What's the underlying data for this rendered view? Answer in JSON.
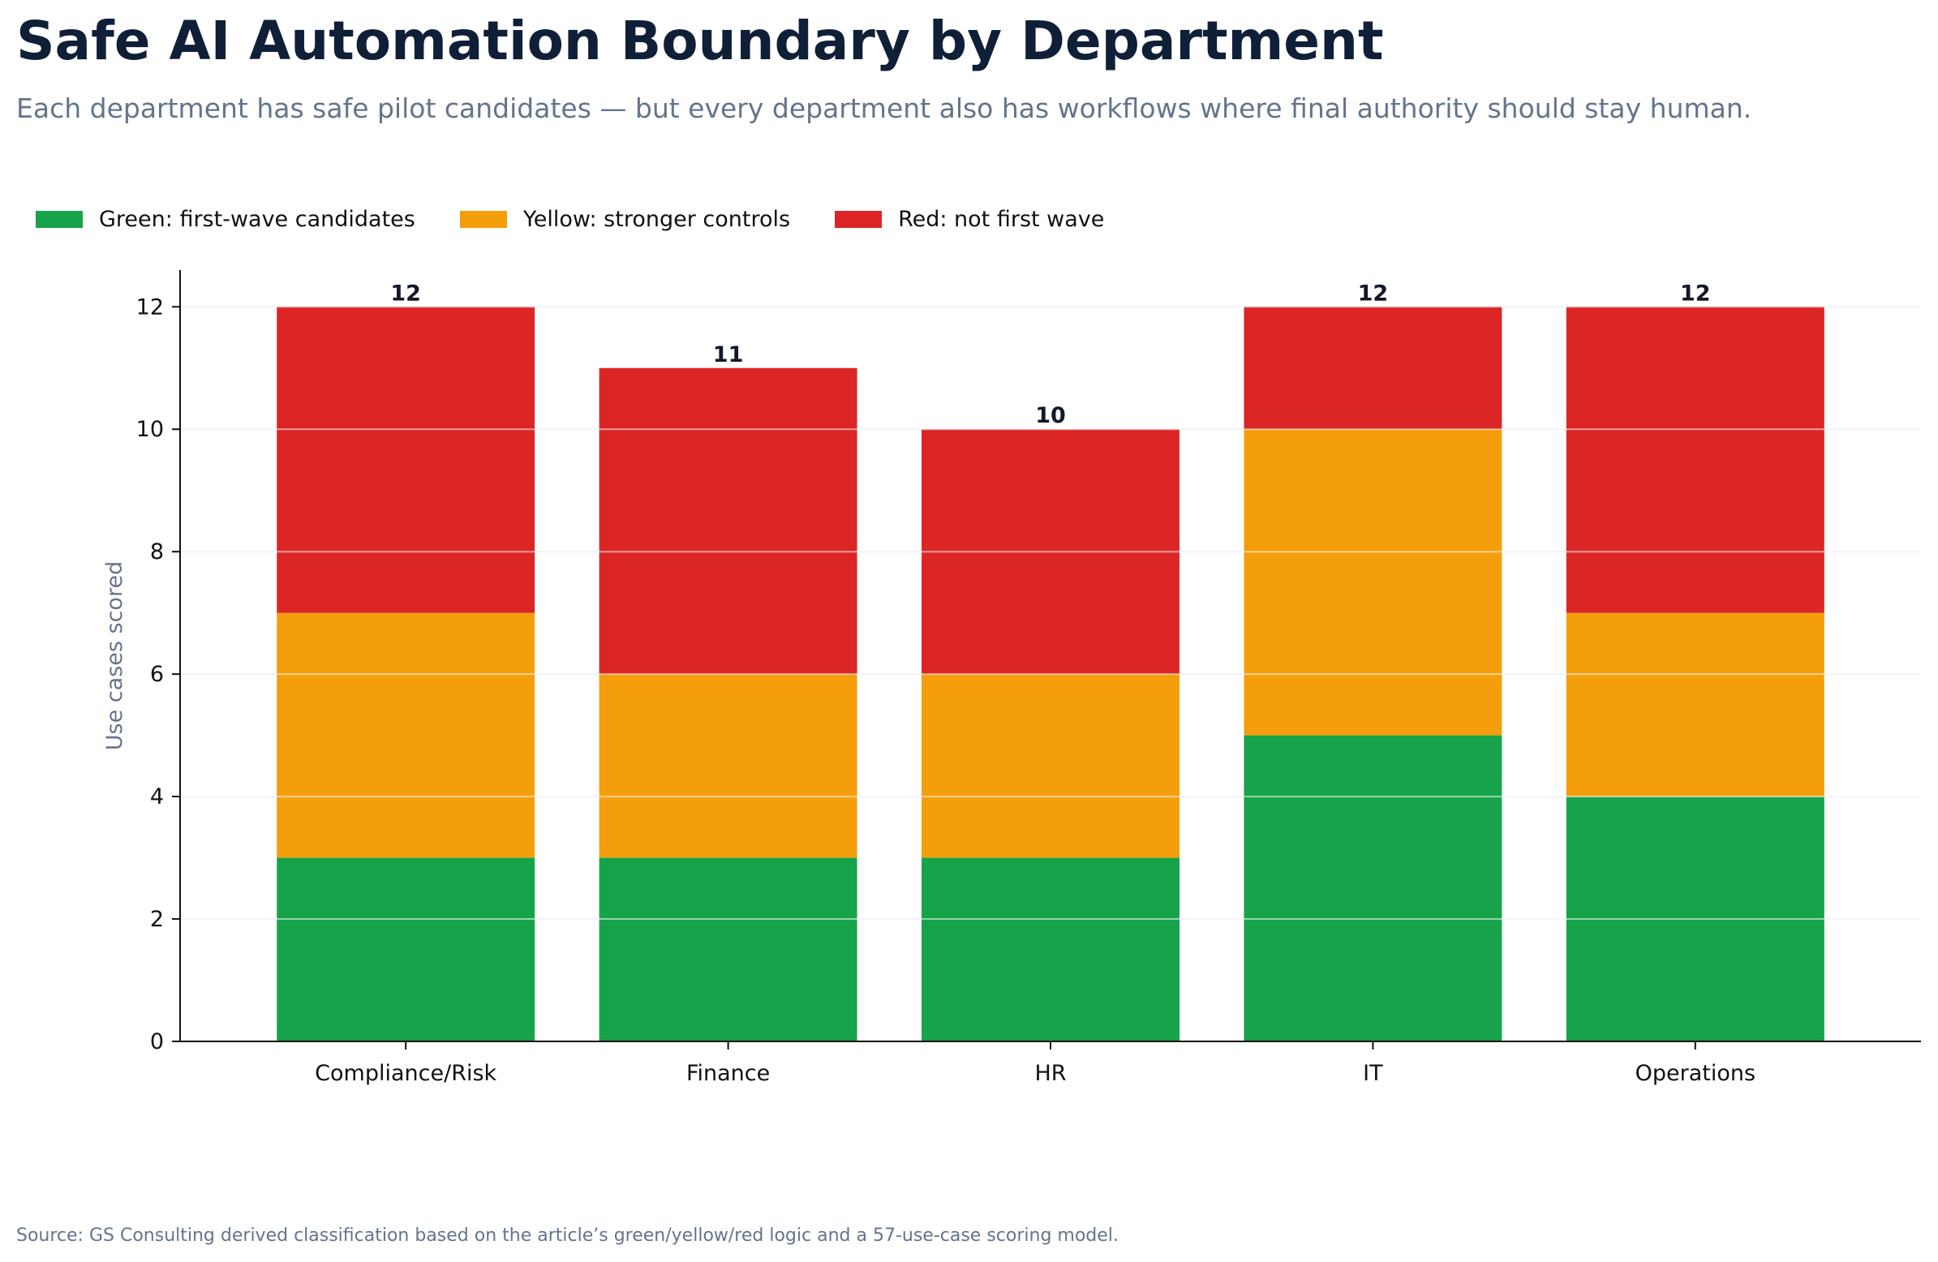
{
  "header": {
    "title": "Safe AI Automation Boundary by Department",
    "subtitle": "Each department has safe pilot candidates — but every department also has workflows where final authority should stay human."
  },
  "footer": {
    "source": "Source: GS Consulting derived classification based on the article’s green/yellow/red logic and a 57-use-case scoring model."
  },
  "chart_data": {
    "type": "bar",
    "stacked": true,
    "title": "Safe AI Automation Boundary by Department",
    "subtitle": "Each department has safe pilot candidates — but every department also has workflows where final authority should stay human.",
    "xlabel": "",
    "ylabel": "Use cases scored",
    "ylim": [
      0,
      12.6
    ],
    "yticks": [
      0,
      2,
      4,
      6,
      8,
      10,
      12
    ],
    "grid": true,
    "legend_position": "top-left",
    "categories": [
      "Compliance/Risk",
      "Finance",
      "HR",
      "IT",
      "Operations"
    ],
    "series": [
      {
        "name": "Green: first-wave candidates",
        "color": "#16a34a",
        "values": [
          3,
          3,
          3,
          5,
          4
        ]
      },
      {
        "name": "Yellow: stronger controls",
        "color": "#f59e0b",
        "values": [
          4,
          3,
          3,
          5,
          3
        ]
      },
      {
        "name": "Red: not first wave",
        "color": "#dc2626",
        "values": [
          5,
          5,
          4,
          2,
          5
        ]
      }
    ],
    "totals": [
      12,
      11,
      10,
      12,
      12
    ]
  }
}
